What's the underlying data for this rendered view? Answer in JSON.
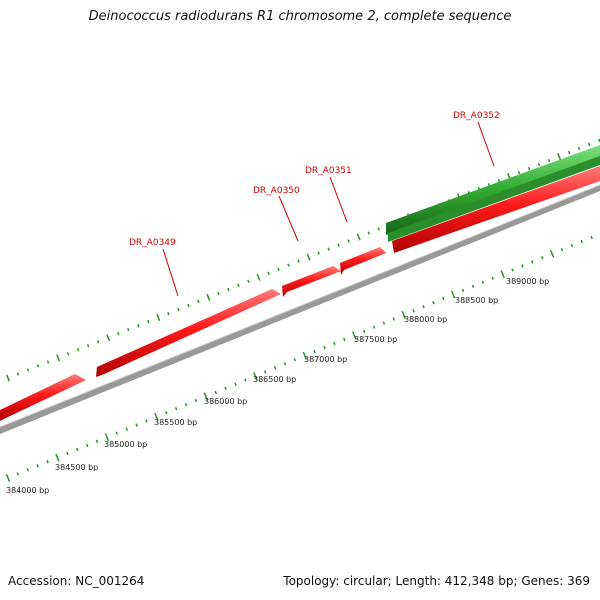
{
  "title": "Deinococcus radiodurans R1 chromosome 2, complete sequence",
  "footer": {
    "accession": "Accession: NC_001264",
    "summary": "Topology: circular; Length: 412,348 bp; Genes: 369"
  },
  "colors": {
    "forward_gene": "#ff1a1a",
    "reverse_gene": "#33aa33",
    "backbone": "#888888",
    "ticks": "#229922",
    "gene_label": "#d40000"
  },
  "scale_labels": [
    "384000 bp",
    "384500 bp",
    "385000 bp",
    "385500 bp",
    "386000 bp",
    "386500 bp",
    "387000 bp",
    "387500 bp",
    "388000 bp",
    "388500 bp",
    "389000 bp"
  ],
  "gene_labels": [
    "DR_A0349",
    "DR_A0350",
    "DR_A0351",
    "DR_A0352"
  ]
}
